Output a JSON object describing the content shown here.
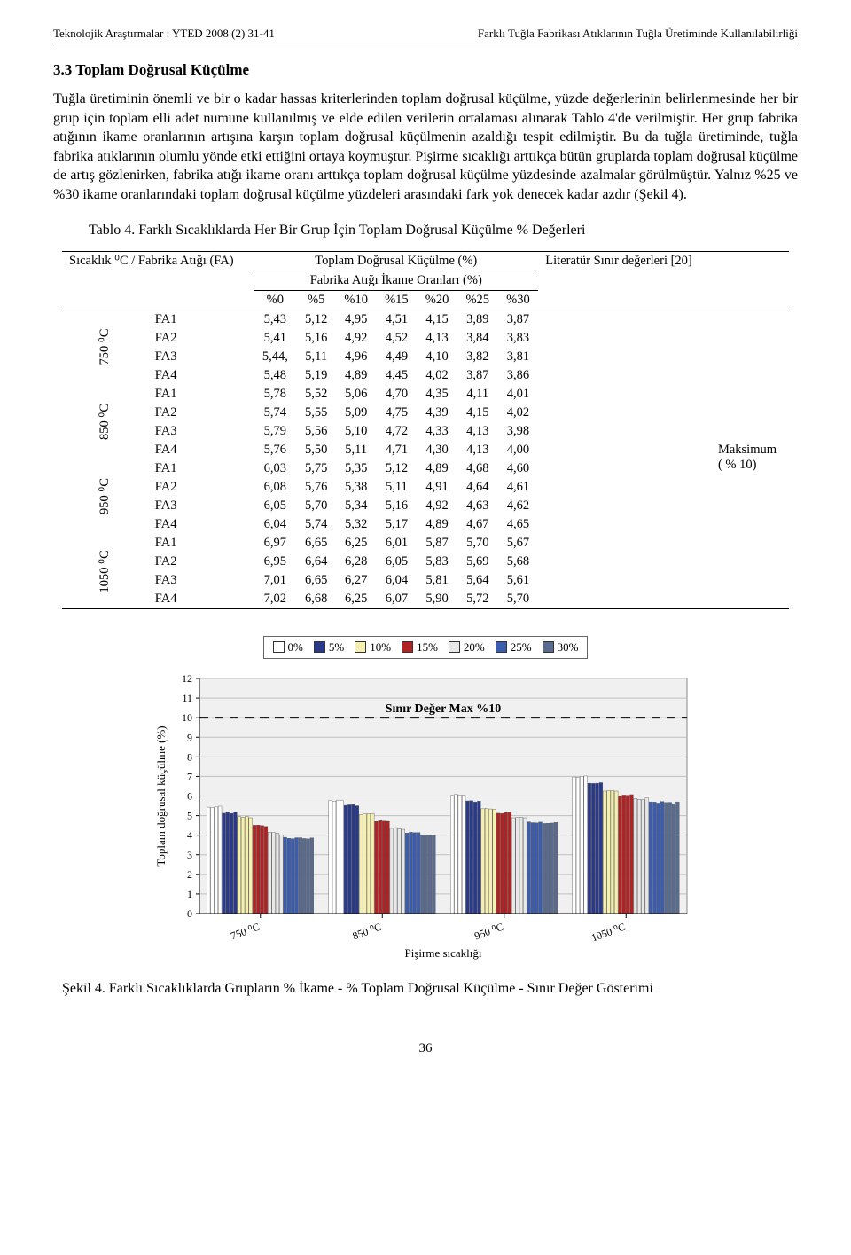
{
  "header": {
    "left": "Teknolojik Araştırmalar : YTED  2008 (2) 31-41",
    "right": "Farklı Tuğla Fabrikası Atıklarının Tuğla Üretiminde Kullanılabilirliği"
  },
  "section_heading": "3.3 Toplam Doğrusal Küçülme",
  "body_text": "Tuğla üretiminin önemli ve bir o kadar hassas kriterlerinden toplam doğrusal küçülme, yüzde değerlerinin belirlenmesinde her bir grup için toplam elli adet numune kullanılmış ve elde edilen verilerin ortalaması alınarak Tablo 4'de verilmiştir. Her grup fabrika atığının ikame oranlarının artışına karşın toplam doğrusal küçülmenin azaldığı tespit edilmiştir. Bu da tuğla üretiminde, tuğla fabrika atıklarının olumlu yönde etki ettiğini ortaya koymuştur. Pişirme sıcaklığı arttıkça bütün gruplarda toplam doğrusal küçülme de artış gözlenirken, fabrika atığı ikame oranı arttıkça toplam doğrusal küçülme yüzdesinde azalmalar görülmüştür. Yalnız %25 ve %30 ikame oranlarındaki toplam doğrusal küçülme yüzdeleri arasındaki fark yok denecek kadar azdır (Şekil 4).",
  "table": {
    "caption": "Tablo 4. Farklı Sıcaklıklarda Her Bir Grup İçin Toplam Doğrusal Küçülme % Değerleri",
    "corner_top": "Sıcaklık ⁰C / Fabrika Atığı (FA)",
    "super_header1": "Toplam Doğrusal Küçülme (%)",
    "super_header2": "Fabrika Atığı İkame Oranları (%)",
    "columns": [
      "%0",
      "%5",
      "%10",
      "%15",
      "%20",
      "%25",
      "%30"
    ],
    "right_header": "Literatür Sınır değerleri [20]",
    "right_value1": "Maksimum",
    "right_value2": "( % 10)",
    "groups": [
      {
        "label": "750 ⁰C",
        "rows": [
          {
            "fa": "FA1",
            "v": [
              "5,43",
              "5,12",
              "4,95",
              "4,51",
              "4,15",
              "3,89",
              "3,87"
            ]
          },
          {
            "fa": "FA2",
            "v": [
              "5,41",
              "5,16",
              "4,92",
              "4,52",
              "4,13",
              "3,84",
              "3,83"
            ]
          },
          {
            "fa": "FA3",
            "v": [
              "5,44,",
              "5,11",
              "4,96",
              "4,49",
              "4,10",
              "3,82",
              "3,81"
            ]
          },
          {
            "fa": "FA4",
            "v": [
              "5,48",
              "5,19",
              "4,89",
              "4,45",
              "4,02",
              "3,87",
              "3,86"
            ]
          }
        ]
      },
      {
        "label": "850 ⁰C",
        "rows": [
          {
            "fa": "FA1",
            "v": [
              "5,78",
              "5,52",
              "5,06",
              "4,70",
              "4,35",
              "4,11",
              "4,01"
            ]
          },
          {
            "fa": "FA2",
            "v": [
              "5,74",
              "5,55",
              "5,09",
              "4,75",
              "4,39",
              "4,15",
              "4,02"
            ]
          },
          {
            "fa": "FA3",
            "v": [
              "5,79",
              "5,56",
              "5,10",
              "4,72",
              "4,33",
              "4,13",
              "3,98"
            ]
          },
          {
            "fa": "FA4",
            "v": [
              "5,76",
              "5,50",
              "5,11",
              "4,71",
              "4,30",
              "4,13",
              "4,00"
            ]
          }
        ]
      },
      {
        "label": "950 ⁰C",
        "rows": [
          {
            "fa": "FA1",
            "v": [
              "6,03",
              "5,75",
              "5,35",
              "5,12",
              "4,89",
              "4,68",
              "4,60"
            ]
          },
          {
            "fa": "FA2",
            "v": [
              "6,08",
              "5,76",
              "5,38",
              "5,11",
              "4,91",
              "4,64",
              "4,61"
            ]
          },
          {
            "fa": "FA3",
            "v": [
              "6,05",
              "5,70",
              "5,34",
              "5,16",
              "4,92",
              "4,63",
              "4,62"
            ]
          },
          {
            "fa": "FA4",
            "v": [
              "6,04",
              "5,74",
              "5,32",
              "5,17",
              "4,89",
              "4,67",
              "4,65"
            ]
          }
        ]
      },
      {
        "label": "1050 ⁰C",
        "rows": [
          {
            "fa": "FA1",
            "v": [
              "6,97",
              "6,65",
              "6,25",
              "6,01",
              "5,87",
              "5,70",
              "5,67"
            ]
          },
          {
            "fa": "FA2",
            "v": [
              "6,95",
              "6,64",
              "6,28",
              "6,05",
              "5,83",
              "5,69",
              "5,68"
            ]
          },
          {
            "fa": "FA3",
            "v": [
              "7,01",
              "6,65",
              "6,27",
              "6,04",
              "5,81",
              "5,64",
              "5,61"
            ]
          },
          {
            "fa": "FA4",
            "v": [
              "7,02",
              "6,68",
              "6,25",
              "6,07",
              "5,90",
              "5,72",
              "5,70"
            ]
          }
        ]
      }
    ]
  },
  "chart": {
    "type": "grouped-bar",
    "legend": [
      {
        "label": "0%",
        "color": "#ffffff"
      },
      {
        "label": "5%",
        "color": "#2a3a8a"
      },
      {
        "label": "10%",
        "color": "#f6f0b0"
      },
      {
        "label": "15%",
        "color": "#b22222"
      },
      {
        "label": "20%",
        "color": "#e8e8e8"
      },
      {
        "label": "25%",
        "color": "#3b5db0"
      },
      {
        "label": "30%",
        "color": "#5a6b90"
      }
    ],
    "ylim": [
      0,
      12
    ],
    "ytick_step": 1,
    "ylabel": "Toplam doğrusal küçülme (%)",
    "xlabel": "Pişirme sıcaklığı",
    "limit_label": "Sınır Değer Max %10",
    "limit_value": 10,
    "categories": [
      "750 ⁰C",
      "850 ⁰C",
      "950 ⁰C",
      "1050 ⁰C"
    ],
    "series": [
      [
        5.43,
        5.41,
        5.44,
        5.48,
        5.12,
        5.16,
        5.11,
        5.19,
        4.95,
        4.92,
        4.96,
        4.89,
        4.51,
        4.52,
        4.49,
        4.45,
        4.15,
        4.13,
        4.1,
        4.02,
        3.89,
        3.84,
        3.82,
        3.87,
        3.87,
        3.83,
        3.81,
        3.86
      ],
      [
        5.78,
        5.74,
        5.79,
        5.76,
        5.52,
        5.55,
        5.56,
        5.5,
        5.06,
        5.09,
        5.1,
        5.11,
        4.7,
        4.75,
        4.72,
        4.71,
        4.35,
        4.39,
        4.33,
        4.3,
        4.11,
        4.15,
        4.13,
        4.13,
        4.01,
        4.02,
        3.98,
        4.0
      ],
      [
        6.03,
        6.08,
        6.05,
        6.04,
        5.75,
        5.76,
        5.7,
        5.74,
        5.35,
        5.38,
        5.34,
        5.32,
        5.12,
        5.11,
        5.16,
        5.17,
        4.89,
        4.91,
        4.92,
        4.89,
        4.68,
        4.64,
        4.63,
        4.67,
        4.6,
        4.61,
        4.62,
        4.65
      ],
      [
        6.97,
        6.95,
        7.01,
        7.02,
        6.65,
        6.64,
        6.65,
        6.68,
        6.25,
        6.28,
        6.27,
        6.25,
        6.01,
        6.05,
        6.04,
        6.07,
        5.87,
        5.83,
        5.81,
        5.9,
        5.7,
        5.69,
        5.64,
        5.72,
        5.67,
        5.68,
        5.61,
        5.7
      ]
    ],
    "background_color": "#f0f0f0",
    "grid_color": "#bfbfbf",
    "axis_fontsize": 12
  },
  "figure_caption": "Şekil 4. Farklı Sıcaklıklarda Grupların  % İkame - % Toplam Doğrusal Küçülme - Sınır Değer Gösterimi",
  "page_number": "36"
}
